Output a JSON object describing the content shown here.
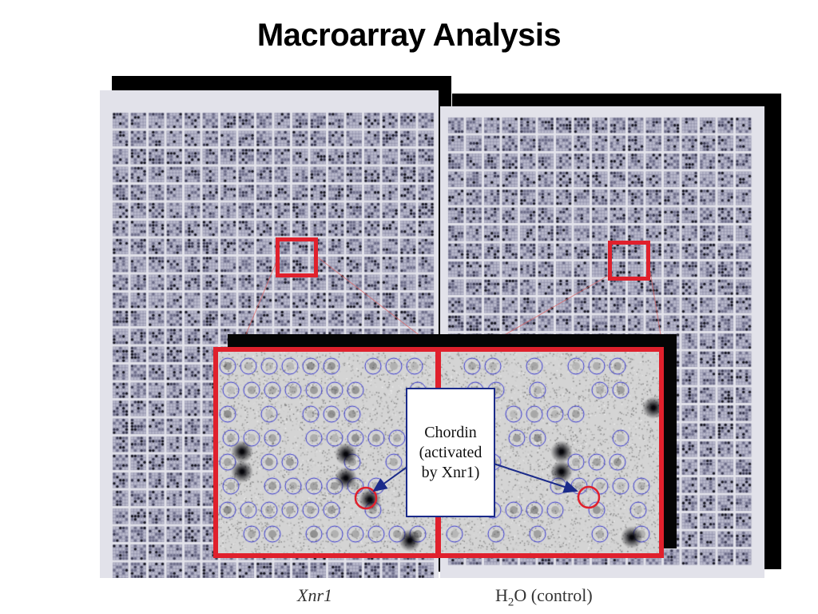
{
  "slide": {
    "title": "Macroarray Analysis"
  },
  "panels": [
    {
      "id": "left",
      "caption": "Xnr1"
    },
    {
      "id": "right",
      "caption_main": "H",
      "caption_sub": "2",
      "caption_rest": "O (control)"
    }
  ],
  "callout": {
    "text": "Chordin\n(activated\nby Xnr1)"
  },
  "colors": {
    "highlight": "#e0202c",
    "callout_border": "#1a2a8a",
    "ring": "#3b3bd0"
  }
}
